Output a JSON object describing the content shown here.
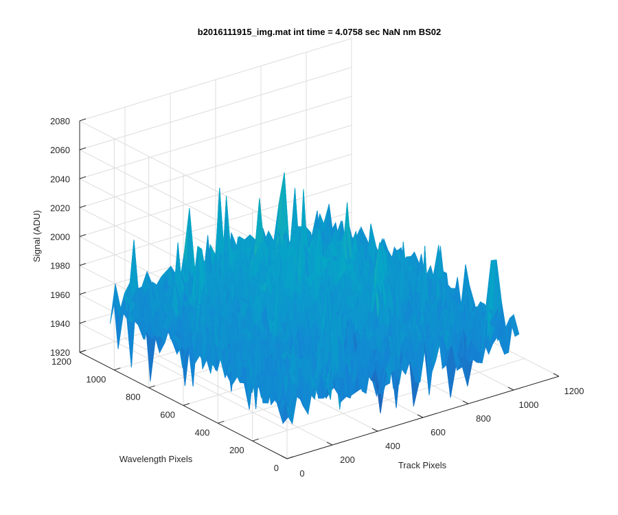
{
  "chart_data": {
    "type": "surface",
    "title": "b2016111915_img.mat int time = 4.0758 sec  NaN nm BS02",
    "xlabel": "Track Pixels",
    "ylabel": "Wavelength Pixels",
    "zlabel": "Signal (ADU)",
    "xlim": [
      0,
      1200
    ],
    "ylim": [
      0,
      1200
    ],
    "zlim": [
      1920,
      2080
    ],
    "x_ticks": [
      "0",
      "200",
      "400",
      "600",
      "800",
      "1000",
      "1200"
    ],
    "y_ticks": [
      "0",
      "200",
      "400",
      "600",
      "800",
      "1000",
      "1200"
    ],
    "z_ticks": [
      "1920",
      "1940",
      "1960",
      "1980",
      "2000",
      "2020",
      "2040",
      "2060",
      "2080"
    ],
    "data_extent": {
      "x": [
        0,
        1024
      ],
      "y": [
        0,
        1024
      ]
    },
    "signal_mean": 1965,
    "signal_peak": 2065,
    "signal_min": 1925,
    "grid": true,
    "colormap": "parula"
  }
}
